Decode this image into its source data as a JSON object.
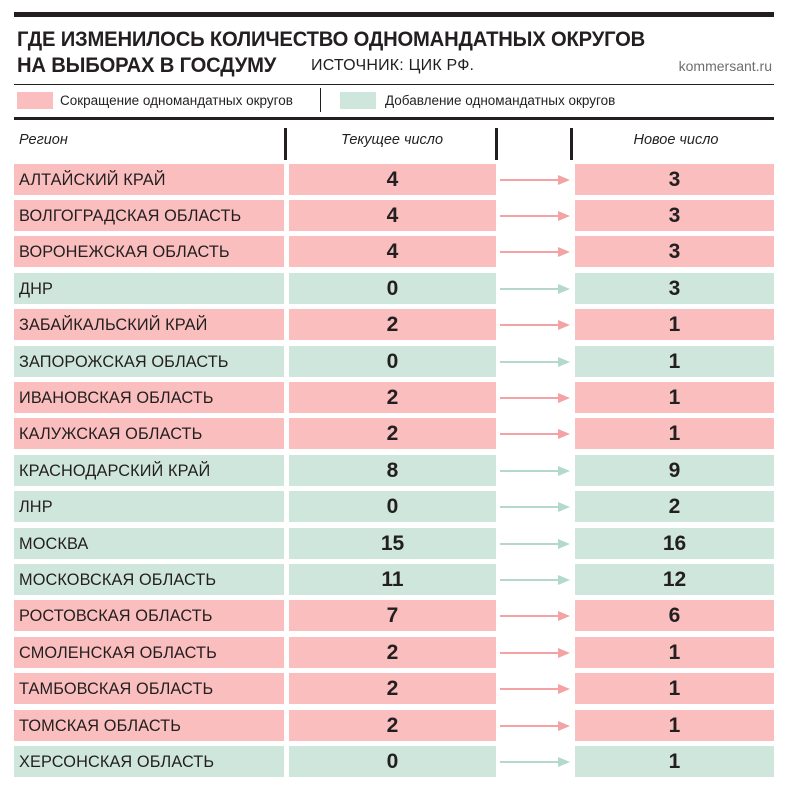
{
  "header": {
    "title_line1": "ГДЕ ИЗМЕНИЛОСЬ КОЛИЧЕСТВО ОДНОМАНДАТНЫХ ОКРУГОВ",
    "title_line2": "НА ВЫБОРАХ В ГОСДУМУ",
    "source": "ИСТОЧНИК: ЦИК РФ.",
    "site": "kommersant.ru"
  },
  "legend": {
    "decrease_label": "Сокращение одномандатных округов",
    "increase_label": "Добавление одномандатных округов"
  },
  "colors": {
    "decrease": "#f9bebd",
    "increase": "#cfe6dd",
    "arrow_decrease": "#f4a2a4",
    "arrow_increase": "#b4d9cc",
    "text": "#231f20"
  },
  "chart_data": {
    "type": "table",
    "columns": [
      "Регион",
      "Текущее число",
      "Новое число"
    ],
    "rows": [
      {
        "region": "АЛТАЙСКИЙ КРАЙ",
        "current": 4,
        "new": 3,
        "change": "decrease"
      },
      {
        "region": "ВОЛГОГРАДСКАЯ ОБЛАСТЬ",
        "current": 4,
        "new": 3,
        "change": "decrease"
      },
      {
        "region": "ВОРОНЕЖСКАЯ ОБЛАСТЬ",
        "current": 4,
        "new": 3,
        "change": "decrease"
      },
      {
        "region": "ДНР",
        "current": 0,
        "new": 3,
        "change": "increase"
      },
      {
        "region": "ЗАБАЙКАЛЬСКИЙ КРАЙ",
        "current": 2,
        "new": 1,
        "change": "decrease"
      },
      {
        "region": "ЗАПОРОЖСКАЯ ОБЛАСТЬ",
        "current": 0,
        "new": 1,
        "change": "increase"
      },
      {
        "region": "ИВАНОВСКАЯ ОБЛАСТЬ",
        "current": 2,
        "new": 1,
        "change": "decrease"
      },
      {
        "region": "КАЛУЖСКАЯ ОБЛАСТЬ",
        "current": 2,
        "new": 1,
        "change": "decrease"
      },
      {
        "region": "КРАСНОДАРСКИЙ КРАЙ",
        "current": 8,
        "new": 9,
        "change": "increase"
      },
      {
        "region": "ЛНР",
        "current": 0,
        "new": 2,
        "change": "increase"
      },
      {
        "region": "МОСКВА",
        "current": 15,
        "new": 16,
        "change": "increase"
      },
      {
        "region": "МОСКОВСКАЯ ОБЛАСТЬ",
        "current": 11,
        "new": 12,
        "change": "increase"
      },
      {
        "region": "РОСТОВСКАЯ ОБЛАСТЬ",
        "current": 7,
        "new": 6,
        "change": "decrease"
      },
      {
        "region": "СМОЛЕНСКАЯ ОБЛАСТЬ",
        "current": 2,
        "new": 1,
        "change": "decrease"
      },
      {
        "region": "ТАМБОВСКАЯ ОБЛАСТЬ",
        "current": 2,
        "new": 1,
        "change": "decrease"
      },
      {
        "region": "ТОМСКАЯ ОБЛАСТЬ",
        "current": 2,
        "new": 1,
        "change": "decrease"
      },
      {
        "region": "ХЕРСОНСКАЯ ОБЛАСТЬ",
        "current": 0,
        "new": 1,
        "change": "increase"
      }
    ]
  }
}
